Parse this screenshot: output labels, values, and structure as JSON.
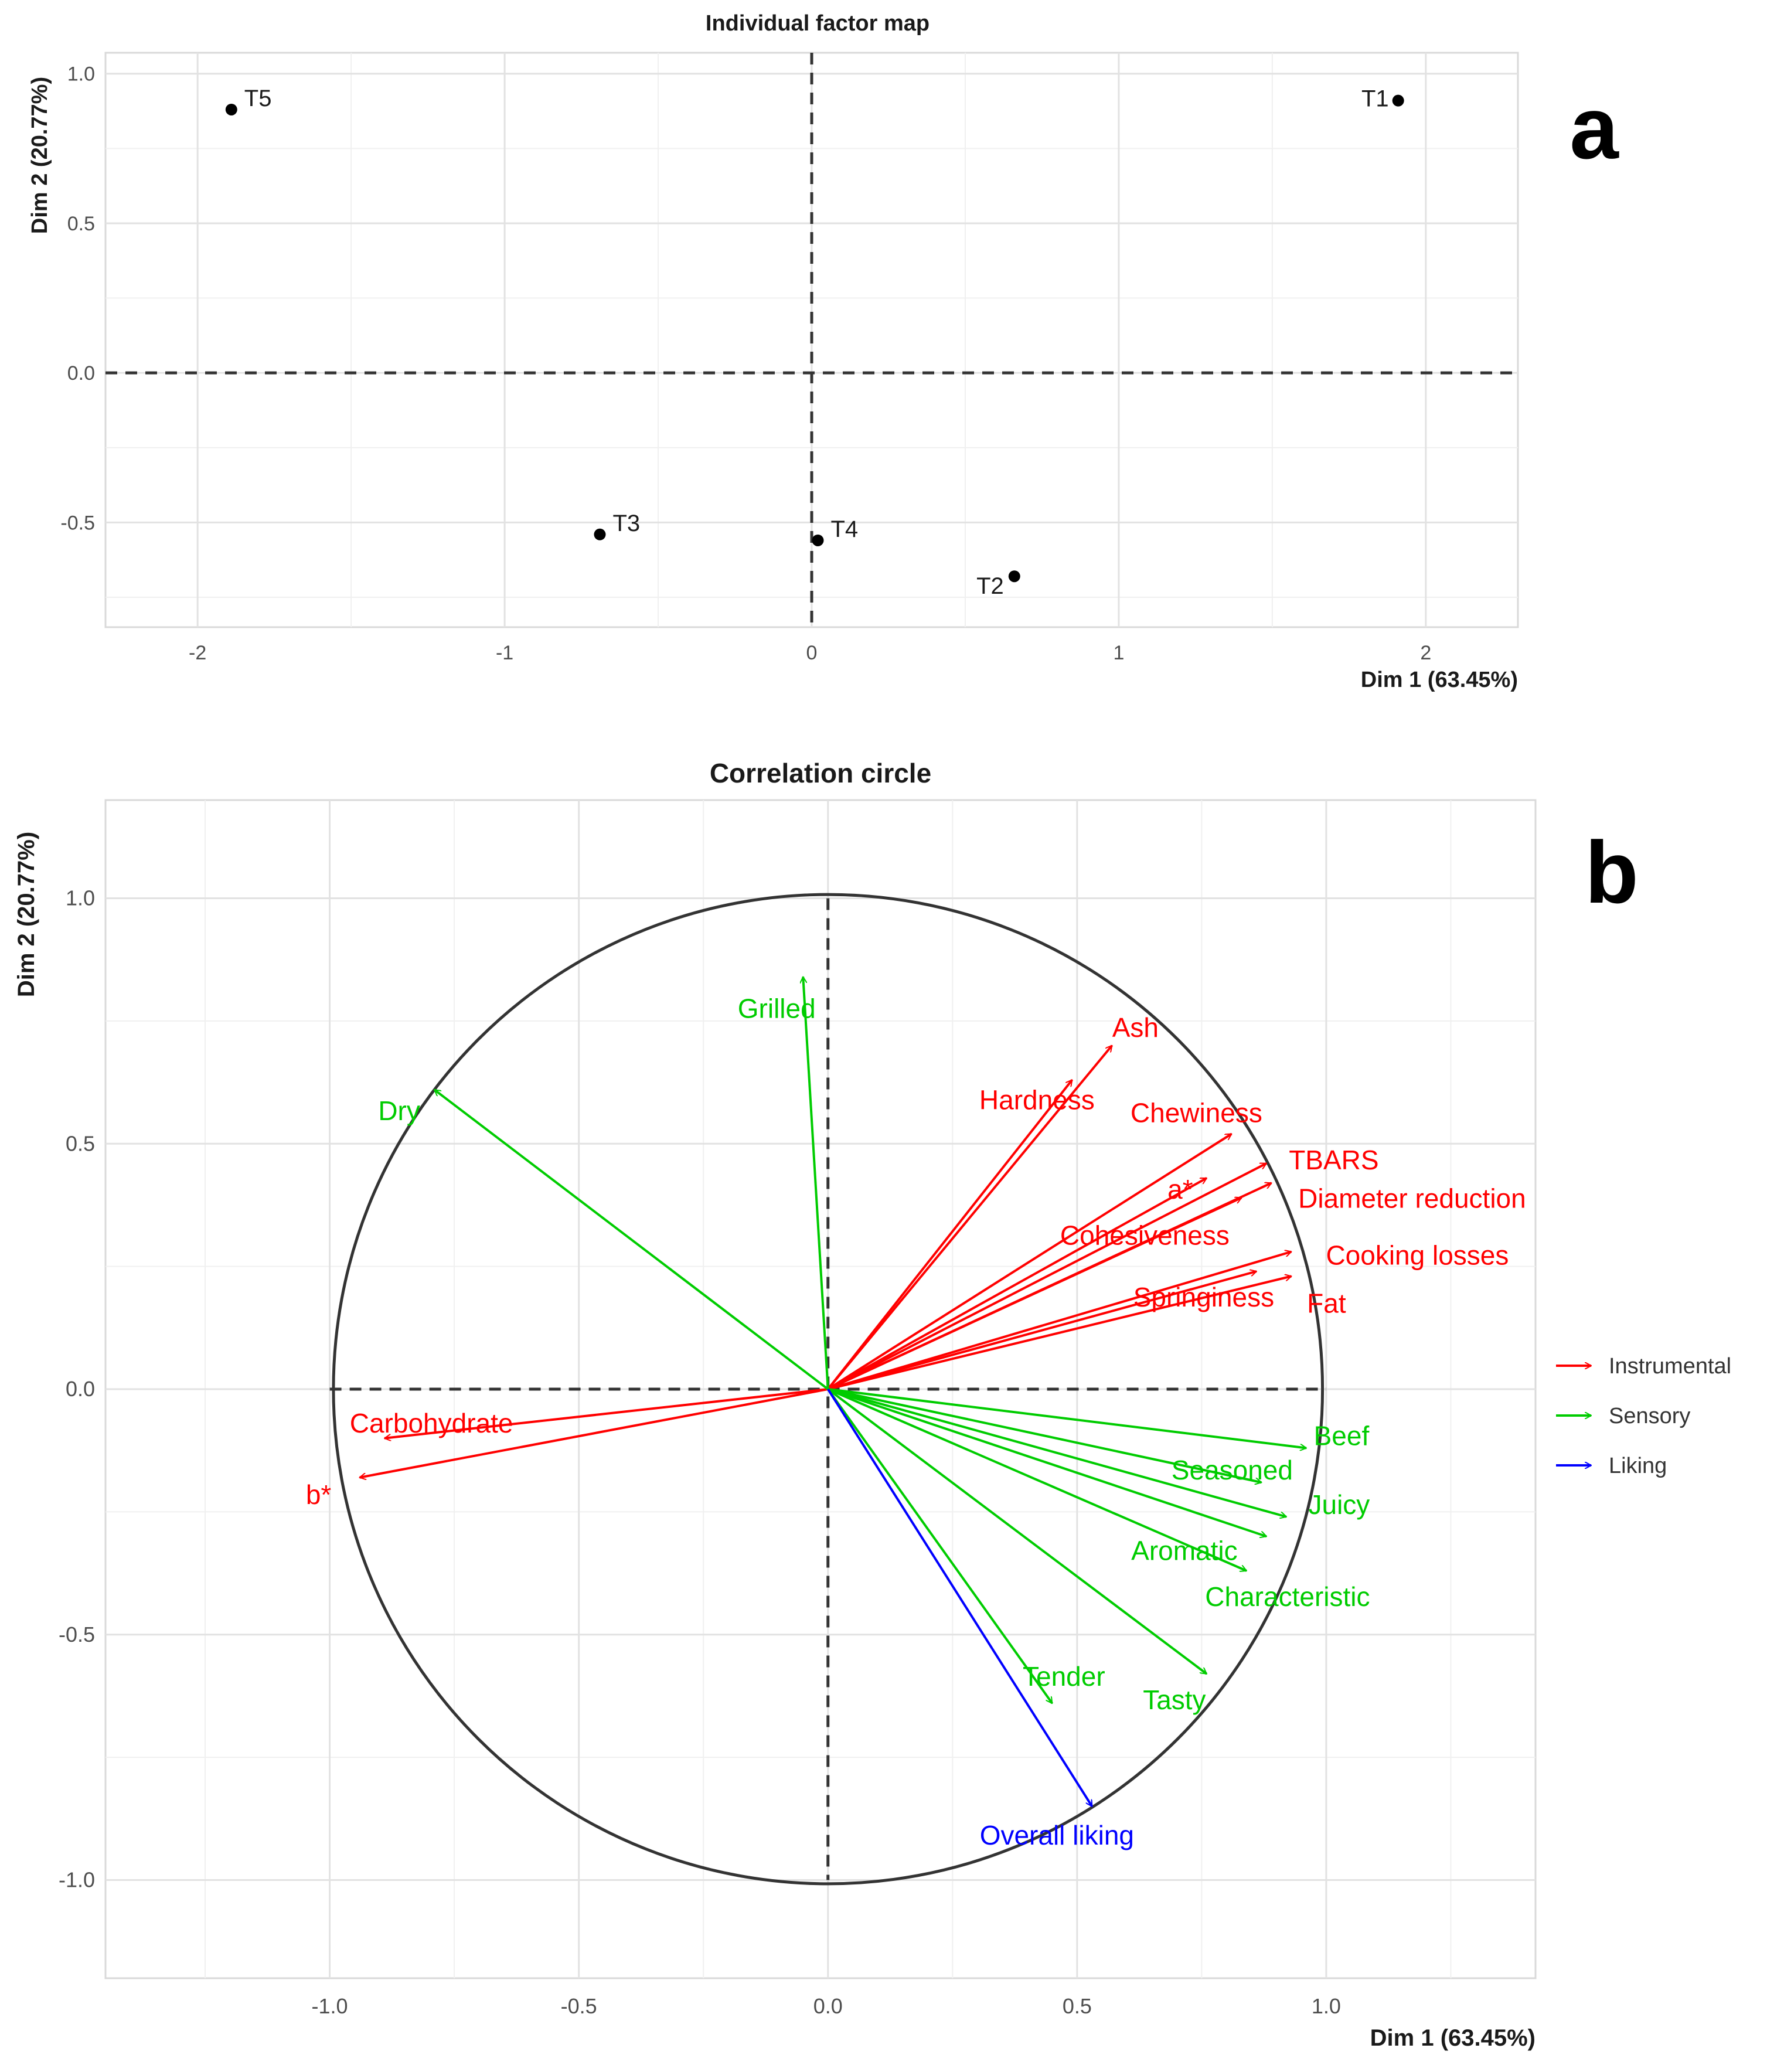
{
  "chart_data": [
    {
      "type": "scatter",
      "title": "Individual factor map",
      "panel_label": "a",
      "xlabel": "Dim 1 (63.45%)",
      "ylabel": "Dim 2 (20.77%)",
      "xlim": [
        -2.3,
        2.3
      ],
      "ylim": [
        -0.85,
        1.07
      ],
      "xticks": [
        -2,
        -1,
        0,
        1,
        2
      ],
      "xtick_labels": [
        "-2",
        "-1",
        "0",
        "1",
        "2"
      ],
      "yticks": [
        -0.5,
        0.0,
        0.5,
        1.0
      ],
      "ytick_labels": [
        "-0.5",
        "0.0",
        "0.5",
        "1.0"
      ],
      "reference_lines": {
        "x": 0,
        "y": 0
      },
      "points": [
        {
          "label": "T1",
          "x": 1.91,
          "y": 0.91
        },
        {
          "label": "T2",
          "x": 0.66,
          "y": -0.68
        },
        {
          "label": "T3",
          "x": -0.69,
          "y": -0.54
        },
        {
          "label": "T4",
          "x": 0.02,
          "y": -0.56
        },
        {
          "label": "T5",
          "x": -1.89,
          "y": 0.88
        }
      ]
    },
    {
      "type": "correlation_circle",
      "title": "Correlation circle",
      "panel_label": "b",
      "xlabel": "Dim 1 (63.45%)",
      "ylabel": "Dim 2 (20.77%)",
      "xlim": [
        -1.45,
        1.42
      ],
      "ylim": [
        -1.2,
        1.2
      ],
      "xticks": [
        -1.0,
        -0.5,
        0.0,
        0.5,
        1.0
      ],
      "xtick_labels": [
        "-1.0",
        "-0.5",
        "0.0",
        "0.5",
        "1.0"
      ],
      "yticks": [
        -1.0,
        -0.5,
        0.0,
        0.5,
        1.0
      ],
      "ytick_labels": [
        "-1.0",
        "-0.5",
        "0.0",
        "0.5",
        "1.0"
      ],
      "reference_lines": {
        "x": 0,
        "y": 0
      },
      "unit_circle_radius": 1.0,
      "legend": [
        {
          "name": "Instrumental",
          "color": "#ff0000"
        },
        {
          "name": "Sensory",
          "color": "#00cc00"
        },
        {
          "name": "Liking",
          "color": "#0000ff"
        }
      ],
      "vectors": [
        {
          "label": "Ash",
          "group": "Instrumental",
          "x": 0.57,
          "y": 0.7
        },
        {
          "label": "Hardness",
          "group": "Instrumental",
          "x": 0.49,
          "y": 0.63
        },
        {
          "label": "Chewiness",
          "group": "Instrumental",
          "x": 0.81,
          "y": 0.52
        },
        {
          "label": "a*",
          "group": "Instrumental",
          "x": 0.76,
          "y": 0.43
        },
        {
          "label": "TBARS",
          "group": "Instrumental",
          "x": 0.88,
          "y": 0.46
        },
        {
          "label": "Diameter reduction",
          "group": "Instrumental",
          "x": 0.89,
          "y": 0.42
        },
        {
          "label": "Cohesiveness",
          "group": "Instrumental",
          "x": 0.83,
          "y": 0.39
        },
        {
          "label": "Cooking losses",
          "group": "Instrumental",
          "x": 0.93,
          "y": 0.28
        },
        {
          "label": "Springiness",
          "group": "Instrumental",
          "x": 0.86,
          "y": 0.24
        },
        {
          "label": "Fat",
          "group": "Instrumental",
          "x": 0.93,
          "y": 0.23
        },
        {
          "label": "Carbohydrate",
          "group": "Instrumental",
          "x": -0.89,
          "y": -0.1
        },
        {
          "label": "b*",
          "group": "Instrumental",
          "x": -0.94,
          "y": -0.18
        },
        {
          "label": "Grilled",
          "group": "Sensory",
          "x": -0.05,
          "y": 0.84
        },
        {
          "label": "Dry",
          "group": "Sensory",
          "x": -0.79,
          "y": 0.61
        },
        {
          "label": "Beef",
          "group": "Sensory",
          "x": 0.96,
          "y": -0.12
        },
        {
          "label": "Seasoned",
          "group": "Sensory",
          "x": 0.87,
          "y": -0.19
        },
        {
          "label": "Juicy",
          "group": "Sensory",
          "x": 0.92,
          "y": -0.26
        },
        {
          "label": "Aromatic",
          "group": "Sensory",
          "x": 0.88,
          "y": -0.3
        },
        {
          "label": "Characteristic",
          "group": "Sensory",
          "x": 0.84,
          "y": -0.37
        },
        {
          "label": "Tasty",
          "group": "Sensory",
          "x": 0.76,
          "y": -0.58
        },
        {
          "label": "Tender",
          "group": "Sensory",
          "x": 0.45,
          "y": -0.64
        },
        {
          "label": "Overall liking",
          "group": "Liking",
          "x": 0.53,
          "y": -0.85
        }
      ]
    }
  ]
}
